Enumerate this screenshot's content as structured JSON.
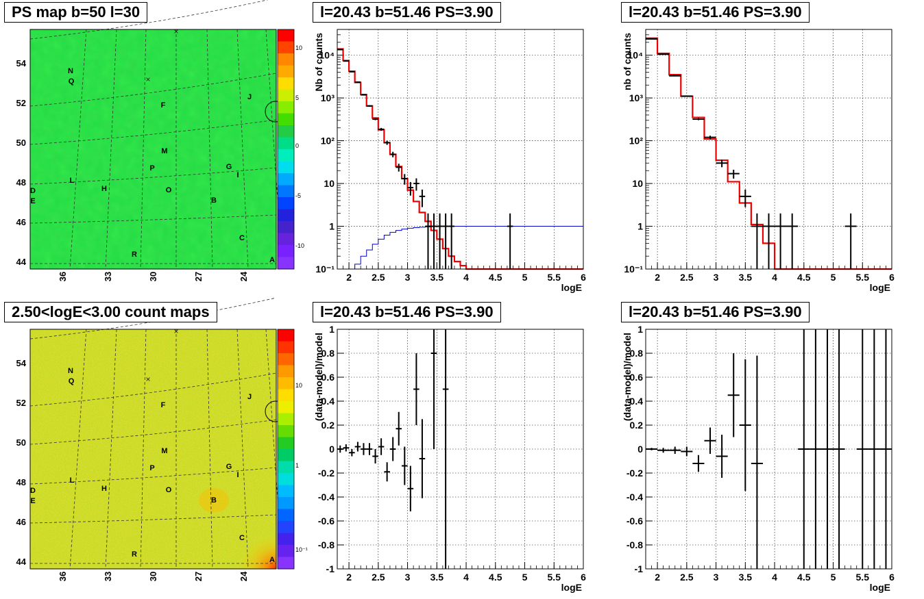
{
  "titles": {
    "map_top": "PS map b=50 l=30",
    "map_bottom": "2.50<logE<3.00 count maps",
    "spec_a": "l=20.43 b=51.46 PS=3.90",
    "spec_b": "l=20.43 b=51.46 PS=3.90",
    "res_a": "l=20.43 b=51.46 PS=3.90",
    "res_b": "l=20.43 b=51.46 PS=3.90"
  },
  "maps": {
    "lat_ticks": [
      "44",
      "46",
      "48",
      "50",
      "52",
      "54"
    ],
    "lon_ticks": [
      "36",
      "33",
      "30",
      "27",
      "24"
    ],
    "source_labels": [
      "N",
      "Q",
      "F",
      "J",
      "M",
      "P",
      "G",
      "I",
      "L",
      "H",
      "O",
      "D",
      "E",
      "B",
      "C",
      "R",
      "A"
    ],
    "colorbar_top": {
      "labels": [
        "10",
        "5",
        "0",
        "-5",
        "-10"
      ],
      "colors": [
        "#ff0000",
        "#ff4400",
        "#ff8800",
        "#ffaa00",
        "#ffdd00",
        "#ccee00",
        "#88ee00",
        "#44dd00",
        "#22cc44",
        "#00dd88",
        "#00eebb",
        "#00ddee",
        "#00aaff",
        "#0077ff",
        "#0044ff",
        "#2222dd",
        "#4422cc",
        "#6622dd",
        "#7722ff",
        "#8833ff"
      ]
    },
    "colorbar_bottom": {
      "labels": [
        "10",
        "1",
        "10⁻¹"
      ],
      "colors": [
        "#ff0000",
        "#ff3300",
        "#ff6600",
        "#ff9900",
        "#ffbb00",
        "#ffdd00",
        "#eeee00",
        "#aaee00",
        "#66dd00",
        "#22cc22",
        "#00cc66",
        "#00ddaa",
        "#00dddd",
        "#00bbff",
        "#0099ff",
        "#0066ff",
        "#2244ff",
        "#4422ee",
        "#6622ee",
        "#8833ff"
      ]
    }
  },
  "axis_labels": {
    "spec_a_y": "Nb of counts",
    "spec_b_y": "nb of counts",
    "res_y": "(data-model)/model",
    "x": "logE"
  },
  "chart_data": [
    {
      "id": "spec_a",
      "type": "line",
      "title": "l=20.43 b=51.46 PS=3.90",
      "xlabel": "logE",
      "ylabel": "Nb of counts",
      "log_y": true,
      "grid": true,
      "xlim": [
        1.8,
        6
      ],
      "ylim": [
        0.1,
        40000
      ],
      "x_ticks": [
        "2",
        "2.5",
        "3",
        "3.5",
        "4",
        "4.5",
        "5",
        "5.5",
        "6"
      ],
      "y_ticks": [
        {
          "v": 0.1,
          "t": "10⁻¹"
        },
        {
          "v": 1,
          "t": "1"
        },
        {
          "v": 10,
          "t": "10"
        },
        {
          "v": 100,
          "t": "10²"
        },
        {
          "v": 1000,
          "t": "10³"
        },
        {
          "v": 10000,
          "t": "10⁴"
        }
      ],
      "bin_width": 0.1,
      "series": [
        {
          "x": [
            1.85,
            1.95,
            2.05,
            2.15,
            2.25,
            2.35,
            2.45,
            2.55,
            2.65,
            2.75,
            2.85,
            2.95,
            3.05,
            3.15,
            3.25,
            3.35,
            3.45,
            3.55,
            3.65,
            3.75,
            3.85,
            3.95,
            4.05,
            4.15,
            4.25,
            4.35,
            4.45,
            4.55,
            4.65,
            4.75,
            4.85,
            4.95,
            5.05,
            5.15,
            5.25,
            5.35,
            5.45,
            5.55,
            5.65,
            5.75,
            5.85,
            5.95
          ],
          "values": [
            14000,
            7500,
            4200,
            2300,
            1200,
            650,
            340,
            180,
            90,
            48,
            25,
            13,
            7,
            3.8,
            2.1,
            1.3,
            0.8,
            0.5,
            0.3,
            0.2,
            0.15,
            0.12,
            0.1,
            0.1,
            0.1,
            0.1,
            0.1,
            0.1,
            0.1,
            0.1,
            0.1,
            0.1,
            0.1,
            0.1,
            0.1,
            0.1,
            0.1,
            0.1,
            0.1,
            0.1,
            0.1,
            0.1
          ],
          "color": "#ee0000"
        },
        {
          "x": [
            1.85,
            1.95,
            2.05,
            2.15,
            2.25,
            2.35,
            2.45,
            2.55,
            2.65,
            2.75,
            2.85,
            2.95,
            3.05,
            3.15,
            3.25,
            3.35,
            3.45,
            3.55,
            3.65,
            3.75,
            3.85,
            3.95,
            4.05,
            4.15,
            4.25,
            4.35,
            4.45,
            4.55,
            4.65,
            4.75,
            4.85,
            4.95,
            5.05,
            5.15,
            5.25,
            5.35,
            5.45,
            5.55,
            5.65,
            5.75,
            5.85,
            5.95
          ],
          "values": [
            0.1,
            0.1,
            0.1,
            0.13,
            0.2,
            0.28,
            0.38,
            0.5,
            0.62,
            0.72,
            0.8,
            0.86,
            0.9,
            0.93,
            0.95,
            0.97,
            0.98,
            0.99,
            0.99,
            1,
            1,
            1,
            1,
            1,
            1,
            1,
            1,
            1,
            1,
            1,
            1,
            1,
            1,
            1,
            1,
            1,
            1,
            1,
            1,
            1,
            1,
            1
          ],
          "color": "#0000cc"
        }
      ],
      "points": [
        {
          "x": 1.85,
          "y": 13500,
          "lo": 13300,
          "hi": 13700
        },
        {
          "x": 1.95,
          "y": 7300,
          "lo": 7200,
          "hi": 7400
        },
        {
          "x": 2.05,
          "y": 4100,
          "lo": 4030,
          "hi": 4170
        },
        {
          "x": 2.15,
          "y": 2350,
          "lo": 2300,
          "hi": 2400
        },
        {
          "x": 2.25,
          "y": 1180,
          "lo": 1145,
          "hi": 1215
        },
        {
          "x": 2.35,
          "y": 650,
          "lo": 625,
          "hi": 675
        },
        {
          "x": 2.45,
          "y": 320,
          "lo": 302,
          "hi": 338
        },
        {
          "x": 2.55,
          "y": 185,
          "lo": 171,
          "hi": 199
        },
        {
          "x": 2.65,
          "y": 90,
          "lo": 80,
          "hi": 100
        },
        {
          "x": 2.75,
          "y": 48,
          "lo": 41,
          "hi": 55
        },
        {
          "x": 2.85,
          "y": 24,
          "lo": 19,
          "hi": 29
        },
        {
          "x": 2.95,
          "y": 13,
          "lo": 9.4,
          "hi": 16.6
        },
        {
          "x": 3.05,
          "y": 8,
          "lo": 5.2,
          "hi": 10.8
        },
        {
          "x": 3.15,
          "y": 10,
          "lo": 6.8,
          "hi": 13.2
        },
        {
          "x": 3.25,
          "y": 5,
          "lo": 2.8,
          "hi": 7.2
        },
        {
          "x": 3.35,
          "y": 1,
          "lo": 0.1,
          "hi": 2
        },
        {
          "x": 3.45,
          "y": 1,
          "lo": 0.1,
          "hi": 2
        },
        {
          "x": 3.55,
          "y": 1,
          "lo": 0.1,
          "hi": 2
        },
        {
          "x": 3.65,
          "y": 1,
          "lo": 0.1,
          "hi": 2
        },
        {
          "x": 3.75,
          "y": 1,
          "lo": 0.1,
          "hi": 2
        },
        {
          "x": 4.75,
          "y": 1,
          "lo": 0.1,
          "hi": 2
        }
      ]
    },
    {
      "id": "spec_b",
      "type": "line",
      "title": "l=20.43 b=51.46 PS=3.90",
      "xlabel": "logE",
      "ylabel": "nb of counts",
      "log_y": true,
      "grid": true,
      "xlim": [
        1.8,
        6
      ],
      "ylim": [
        0.1,
        40000
      ],
      "x_ticks": [
        "2",
        "2.5",
        "3",
        "3.5",
        "4",
        "4.5",
        "5",
        "5.5",
        "6"
      ],
      "y_ticks": [
        {
          "v": 0.1,
          "t": "10⁻¹"
        },
        {
          "v": 1,
          "t": "1"
        },
        {
          "v": 10,
          "t": "10"
        },
        {
          "v": 100,
          "t": "10²"
        },
        {
          "v": 1000,
          "t": "10³"
        },
        {
          "v": 10000,
          "t": "10⁴"
        }
      ],
      "bin_width": 0.2,
      "series": [
        {
          "x": [
            1.9,
            2.1,
            2.3,
            2.5,
            2.7,
            2.9,
            3.1,
            3.3,
            3.5,
            3.7,
            3.9,
            4.1,
            4.3,
            4.5,
            4.7,
            4.9,
            5.1,
            5.3,
            5.5,
            5.7,
            5.9
          ],
          "values": [
            25000,
            11000,
            3500,
            1100,
            350,
            110,
            35,
            11,
            3.5,
            1.1,
            0.4,
            0.1,
            0.1,
            0.1,
            0.1,
            0.1,
            0.1,
            0.1,
            0.1,
            0.1,
            0.1
          ],
          "color": "#ee0000"
        }
      ],
      "points": [
        {
          "x": 1.9,
          "y": 24000,
          "lo": 23800,
          "hi": 24200
        },
        {
          "x": 2.1,
          "y": 10500,
          "lo": 10400,
          "hi": 10600
        },
        {
          "x": 2.3,
          "y": 3300,
          "lo": 3240,
          "hi": 3360
        },
        {
          "x": 2.5,
          "y": 1100,
          "lo": 1065,
          "hi": 1135
        },
        {
          "x": 2.7,
          "y": 320,
          "lo": 302,
          "hi": 338
        },
        {
          "x": 2.9,
          "y": 120,
          "lo": 109,
          "hi": 131
        },
        {
          "x": 3.1,
          "y": 30,
          "lo": 24,
          "hi": 36
        },
        {
          "x": 3.3,
          "y": 17,
          "lo": 13,
          "hi": 21
        },
        {
          "x": 3.5,
          "y": 5,
          "lo": 2.8,
          "hi": 7.2
        },
        {
          "x": 3.7,
          "y": 1,
          "lo": 0.1,
          "hi": 2
        },
        {
          "x": 3.9,
          "y": 1,
          "lo": 0.1,
          "hi": 2
        },
        {
          "x": 4.1,
          "y": 1,
          "lo": 0.1,
          "hi": 2
        },
        {
          "x": 4.3,
          "y": 1,
          "lo": 0.1,
          "hi": 2
        },
        {
          "x": 5.3,
          "y": 1,
          "lo": 0.1,
          "hi": 2
        }
      ]
    },
    {
      "id": "res_a",
      "type": "scatter",
      "title": "l=20.43 b=51.46 PS=3.90",
      "xlabel": "logE",
      "ylabel": "(data-model)/model",
      "grid": true,
      "xlim": [
        1.8,
        6
      ],
      "ylim": [
        -1,
        1
      ],
      "x_ticks": [
        "2",
        "2.5",
        "3",
        "3.5",
        "4",
        "4.5",
        "5",
        "5.5",
        "6"
      ],
      "y_ticks": [
        "-1",
        "-0.8",
        "-0.6",
        "-0.4",
        "-0.2",
        "0",
        "0.2",
        "0.4",
        "0.6",
        "0.8",
        "1"
      ],
      "bin_width": 0.1,
      "points": [
        {
          "x": 1.85,
          "y": 0,
          "e": 0.03
        },
        {
          "x": 1.95,
          "y": 0.01,
          "e": 0.03
        },
        {
          "x": 2.05,
          "y": -0.03,
          "e": 0.03
        },
        {
          "x": 2.15,
          "y": 0.02,
          "e": 0.04
        },
        {
          "x": 2.25,
          "y": 0,
          "e": 0.05
        },
        {
          "x": 2.35,
          "y": 0,
          "e": 0.05
        },
        {
          "x": 2.45,
          "y": -0.06,
          "e": 0.06
        },
        {
          "x": 2.55,
          "y": 0.02,
          "e": 0.07
        },
        {
          "x": 2.65,
          "y": -0.19,
          "e": 0.08
        },
        {
          "x": 2.75,
          "y": 0,
          "e": 0.1
        },
        {
          "x": 2.85,
          "y": 0.17,
          "e": 0.14
        },
        {
          "x": 2.95,
          "y": -0.14,
          "e": 0.16
        },
        {
          "x": 3.05,
          "y": -0.33,
          "e": 0.19
        },
        {
          "x": 3.15,
          "y": 0.5,
          "e": 0.3
        },
        {
          "x": 3.25,
          "y": -0.08,
          "e": 0.33
        },
        {
          "x": 3.45,
          "y": 0.8,
          "e": 0.8
        },
        {
          "x": 3.65,
          "y": 0.5,
          "e": 1.5
        }
      ]
    },
    {
      "id": "res_b",
      "type": "scatter",
      "title": "l=20.43 b=51.46 PS=3.90",
      "xlabel": "logE",
      "ylabel": "(data-model)/model",
      "grid": true,
      "xlim": [
        1.8,
        6
      ],
      "ylim": [
        -1,
        1
      ],
      "x_ticks": [
        "2",
        "2.5",
        "3",
        "3.5",
        "4",
        "4.5",
        "5",
        "5.5",
        "6"
      ],
      "y_ticks": [
        "-1",
        "-0.8",
        "-0.6",
        "-0.4",
        "-0.2",
        "0",
        "0.2",
        "0.4",
        "0.6",
        "0.8",
        "1"
      ],
      "bin_width": 0.2,
      "points": [
        {
          "x": 1.9,
          "y": 0,
          "e": 0.01
        },
        {
          "x": 2.1,
          "y": -0.01,
          "e": 0.02
        },
        {
          "x": 2.3,
          "y": -0.01,
          "e": 0.03
        },
        {
          "x": 2.5,
          "y": -0.02,
          "e": 0.04
        },
        {
          "x": 2.7,
          "y": -0.12,
          "e": 0.07
        },
        {
          "x": 2.9,
          "y": 0.07,
          "e": 0.11
        },
        {
          "x": 3.1,
          "y": -0.06,
          "e": 0.18
        },
        {
          "x": 3.3,
          "y": 0.45,
          "e": 0.35
        },
        {
          "x": 3.5,
          "y": 0.2,
          "e": 0.55
        },
        {
          "x": 3.7,
          "y": -0.12,
          "e": 0.9
        },
        {
          "x": 4.5,
          "y": 0,
          "e": 2
        },
        {
          "x": 4.7,
          "y": 0,
          "e": 2
        },
        {
          "x": 4.9,
          "y": 0,
          "e": 2
        },
        {
          "x": 5.1,
          "y": 0,
          "e": 2
        },
        {
          "x": 5.5,
          "y": 0,
          "e": 2
        },
        {
          "x": 5.7,
          "y": 0,
          "e": 2
        },
        {
          "x": 5.9,
          "y": 0,
          "e": 2
        }
      ]
    }
  ]
}
